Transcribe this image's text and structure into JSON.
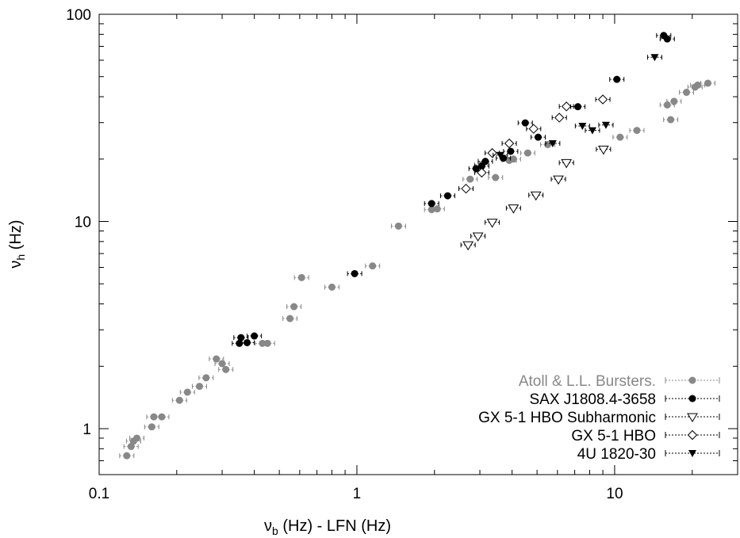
{
  "chart_data": {
    "type": "scatter",
    "title": "",
    "xscale": "log",
    "yscale": "log",
    "xlim": [
      0.1,
      30
    ],
    "ylim": [
      0.6,
      100
    ],
    "xticks": [
      "0.1",
      "1",
      "10"
    ],
    "yticks": [
      "1",
      "10",
      "100"
    ],
    "xlabel": {
      "nu": "ν",
      "sub": "b",
      "rest": " (Hz) - LFN (Hz)"
    },
    "ylabel": {
      "nu": "ν",
      "sub": "h",
      "rest": " (Hz)"
    },
    "legend_position": "bottom-right",
    "series": [
      {
        "name": "Atoll & L.L. Bursters.",
        "color": "#888888",
        "marker": "filled-circle",
        "points": [
          [
            0.128,
            0.74
          ],
          [
            0.133,
            0.82
          ],
          [
            0.136,
            0.87
          ],
          [
            0.14,
            0.9
          ],
          [
            0.16,
            1.02
          ],
          [
            0.163,
            1.14
          ],
          [
            0.175,
            1.14
          ],
          [
            0.205,
            1.37
          ],
          [
            0.22,
            1.5
          ],
          [
            0.245,
            1.6
          ],
          [
            0.26,
            1.76
          ],
          [
            0.285,
            2.17
          ],
          [
            0.3,
            2.06
          ],
          [
            0.31,
            1.93
          ],
          [
            0.43,
            2.58
          ],
          [
            0.45,
            2.58
          ],
          [
            0.55,
            3.4
          ],
          [
            0.57,
            3.88
          ],
          [
            0.61,
            5.36
          ],
          [
            0.8,
            4.82
          ],
          [
            1.15,
            6.1
          ],
          [
            1.45,
            9.5
          ],
          [
            1.95,
            11.4
          ],
          [
            2.05,
            11.5
          ],
          [
            2.75,
            16.0
          ],
          [
            3.05,
            18.8
          ],
          [
            3.45,
            16.3
          ],
          [
            3.9,
            19.7
          ],
          [
            4.05,
            20.0
          ],
          [
            4.6,
            21.4
          ],
          [
            5.5,
            23.5
          ],
          [
            10.5,
            25.5
          ],
          [
            12.2,
            27.5
          ],
          [
            16.0,
            36.5
          ],
          [
            17.0,
            38.0
          ],
          [
            16.5,
            31.0
          ],
          [
            19.0,
            42.0
          ],
          [
            20.5,
            44.5
          ],
          [
            21.0,
            45.5
          ],
          [
            23.0,
            46.5
          ]
        ]
      },
      {
        "name": "SAX J1808.4-3658",
        "color": "#000000",
        "marker": "filled-circle",
        "points": [
          [
            0.35,
            2.58
          ],
          [
            0.355,
            2.75
          ],
          [
            0.375,
            2.6
          ],
          [
            0.4,
            2.8
          ],
          [
            0.98,
            5.6
          ],
          [
            1.95,
            12.2
          ],
          [
            2.25,
            13.3
          ],
          [
            2.9,
            18.0
          ],
          [
            3.05,
            18.5
          ],
          [
            3.15,
            19.5
          ],
          [
            3.7,
            20.2
          ],
          [
            3.95,
            21.8
          ],
          [
            4.5,
            29.9
          ],
          [
            5.05,
            25.5
          ],
          [
            7.2,
            35.8
          ],
          [
            10.2,
            48.5
          ],
          [
            15.5,
            79.0
          ],
          [
            16.0,
            76.0
          ]
        ]
      },
      {
        "name": "GX 5-1 HBO Subharmonic",
        "color": "#000000",
        "marker": "open-triangle-down",
        "points": [
          [
            2.7,
            7.7
          ],
          [
            2.95,
            8.5
          ],
          [
            3.35,
            9.9
          ],
          [
            4.05,
            11.6
          ],
          [
            4.95,
            13.4
          ],
          [
            6.05,
            16.0
          ],
          [
            6.5,
            19.2
          ],
          [
            9.05,
            22.3
          ]
        ]
      },
      {
        "name": "GX 5-1 HBO",
        "color": "#000000",
        "marker": "open-diamond",
        "points": [
          [
            2.65,
            14.4
          ],
          [
            3.05,
            17.2
          ],
          [
            3.35,
            21.4
          ],
          [
            3.9,
            23.8
          ],
          [
            4.85,
            28.0
          ],
          [
            6.1,
            31.7
          ],
          [
            6.5,
            35.9
          ],
          [
            9.0,
            38.8
          ]
        ]
      },
      {
        "name": "4U 1820-30",
        "color": "#000000",
        "marker": "filled-triangle-down",
        "points": [
          [
            3.6,
            20.9
          ],
          [
            5.75,
            23.8
          ],
          [
            7.5,
            28.9
          ],
          [
            8.2,
            27.5
          ],
          [
            9.25,
            29.2
          ],
          [
            14.3,
            62.0
          ]
        ]
      }
    ]
  }
}
